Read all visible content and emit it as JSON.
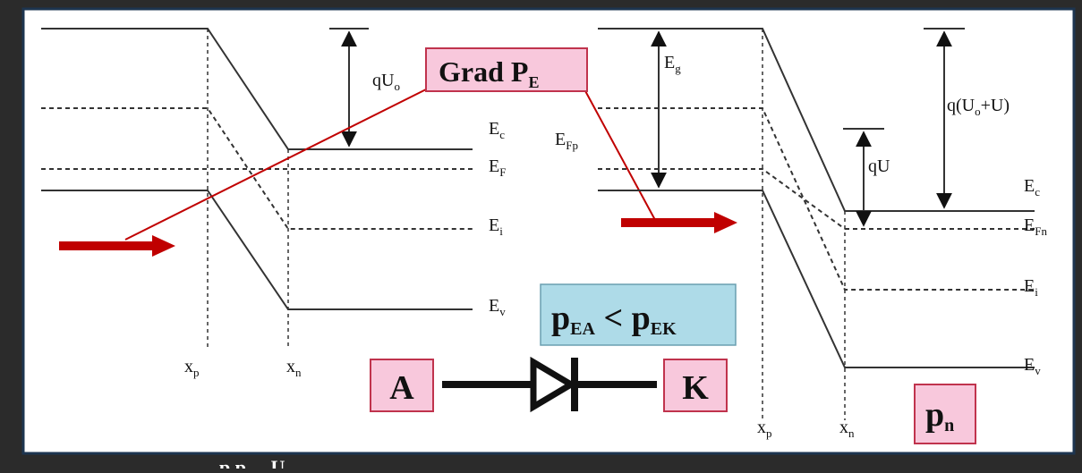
{
  "colors": {
    "frame_bg": "#2b2b2b",
    "panel_bg": "#ffffff",
    "panel_border": "#1d3550",
    "band_line": "#333333",
    "arrow_red": "#c00000",
    "pink_box": "#f8c8dc",
    "blue_box": "#aedbe8"
  },
  "left_diagram": {
    "qU0": {
      "base": "qU",
      "sub": "o"
    },
    "Ec": {
      "base": "E",
      "sub": "c"
    },
    "EF": {
      "base": "E",
      "sub": "F"
    },
    "Ei": {
      "base": "E",
      "sub": "i"
    },
    "Ev": {
      "base": "E",
      "sub": "v"
    },
    "xp": {
      "base": "x",
      "sub": "p"
    },
    "xn": {
      "base": "x",
      "sub": "n"
    }
  },
  "grad_box": {
    "base": "Grad P",
    "sub": "E"
  },
  "right_diagram": {
    "Eg": {
      "base": "E",
      "sub": "g"
    },
    "EFp": {
      "base": "E",
      "sub": "Fp"
    },
    "qU": {
      "text": "qU"
    },
    "qU0U": {
      "pre": "q(U",
      "sub": "o",
      "post": "+U)"
    },
    "Ec": {
      "base": "E",
      "sub": "c"
    },
    "EFn": {
      "base": "E",
      "sub": "Fn"
    },
    "Ei": {
      "base": "E",
      "sub": "i"
    },
    "Ev": {
      "base": "E",
      "sub": "v"
    },
    "xp": {
      "base": "x",
      "sub": "p"
    },
    "xn": {
      "base": "x",
      "sub": "n"
    }
  },
  "inequality_box": {
    "a": "p",
    "a_sub": "EA",
    "op": " < ",
    "b": "p",
    "b_sub": "EK"
  },
  "anode_box": {
    "text": "A"
  },
  "cathode_box": {
    "text": "K"
  },
  "pn_box": {
    "base": "p",
    "sub": "n"
  },
  "caption_fragment": {
    "text": "p  p ... U"
  }
}
